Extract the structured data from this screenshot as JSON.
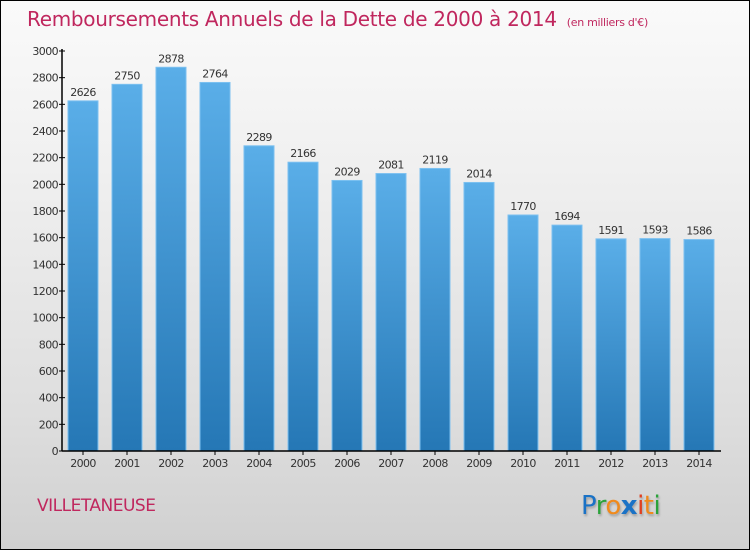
{
  "header": {
    "title": "Remboursements Annuels de la Dette de 2000 à 2014",
    "unit": "(en milliers d'€)"
  },
  "footer": {
    "town": "VILLETANEUSE",
    "logo_letters": [
      {
        "char": "P",
        "color": "#1a72c6"
      },
      {
        "char": "r",
        "color": "#2aa33a"
      },
      {
        "char": "o",
        "color": "#f08a1c"
      },
      {
        "char": "x",
        "color": "#1a72c6"
      },
      {
        "char": "i",
        "color": "#e04020"
      },
      {
        "char": "t",
        "color": "#f08a1c"
      },
      {
        "char": "i",
        "color": "#2aa33a"
      }
    ],
    "logo_text": "Proxiti"
  },
  "colors": {
    "title": "#c0275e",
    "bar_top": "#5aaee8",
    "bar_bottom": "#2577b5",
    "axis": "#000000"
  },
  "chart_data": {
    "type": "bar",
    "title": "Remboursements Annuels de la Dette de 2000 à 2014",
    "subtitle": "(en milliers d'€)",
    "xlabel": "",
    "ylabel": "",
    "categories": [
      "2000",
      "2001",
      "2002",
      "2003",
      "2004",
      "2005",
      "2006",
      "2007",
      "2008",
      "2009",
      "2010",
      "2011",
      "2012",
      "2013",
      "2014"
    ],
    "values": [
      2626,
      2750,
      2878,
      2764,
      2289,
      2166,
      2029,
      2081,
      2119,
      2014,
      1770,
      1694,
      1591,
      1593,
      1586
    ],
    "ylim": [
      0,
      3000
    ],
    "yticks": [
      0,
      200,
      400,
      600,
      800,
      1000,
      1200,
      1400,
      1600,
      1800,
      2000,
      2200,
      2400,
      2600,
      2800,
      3000
    ],
    "grid": false,
    "legend": "none",
    "data_labels": true
  }
}
